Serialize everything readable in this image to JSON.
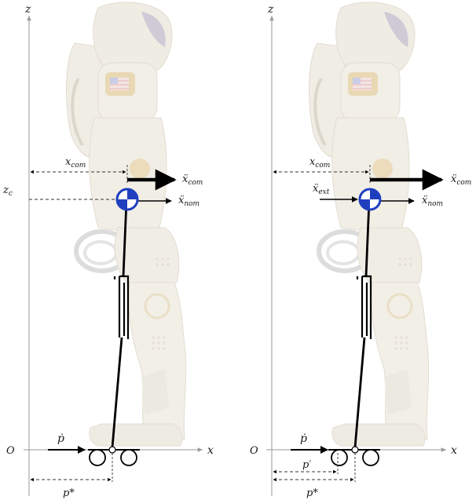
{
  "panels": [
    {
      "id": "left",
      "axis_z": "z",
      "axis_x": "x",
      "origin": "O",
      "zc": "z",
      "zc_sub": "c",
      "xcom": "x",
      "xcom_sub": "com",
      "acc_com": "ẍ",
      "acc_com_sub": "com",
      "acc_nom": "ẍ",
      "acc_nom_sub": "nom",
      "pdot": "ṗ",
      "pstar": "p*"
    },
    {
      "id": "right",
      "axis_z": "z",
      "axis_x": "x",
      "origin": "O",
      "xcom": "x",
      "xcom_sub": "com",
      "acc_com": "ẍ",
      "acc_com_sub": "com",
      "acc_nom": "ẍ",
      "acc_nom_sub": "nom",
      "acc_ext": "ẍ",
      "acc_ext_sub": "ext",
      "pdot": "ṗ",
      "pprime": "p′",
      "pstar": "p*"
    }
  ],
  "colors": {
    "axis": "#9a9a9a",
    "leg": "#000000",
    "com_marker": "#1f3fbf",
    "robot_body": "#ece8dc",
    "robot_gold": "#d9c08a"
  }
}
